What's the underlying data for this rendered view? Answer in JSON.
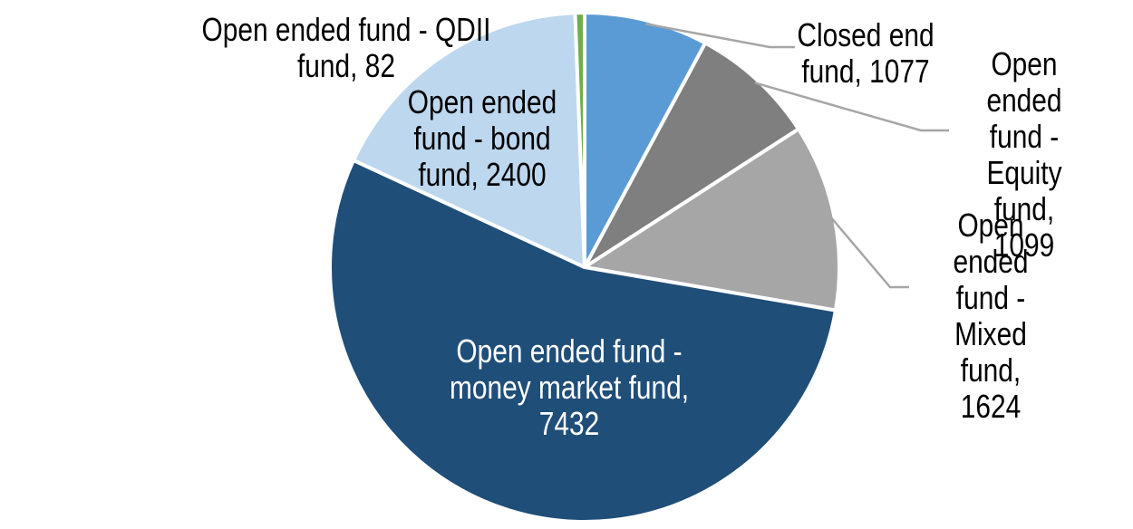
{
  "chart_data": {
    "type": "pie",
    "title": "",
    "legend": "none",
    "start_angle_deg": 0,
    "direction": "clockwise",
    "total": 13714,
    "background": "#ffffff",
    "slice_border_color": "#ffffff",
    "leader_line_color": "#a6a6a6",
    "slices": [
      {
        "label": "Closed end fund",
        "value": 1077,
        "percent": 7.9,
        "color": "#5b9bd5",
        "label_color": "#000000",
        "label_placement": "outside",
        "has_leader_line": true,
        "callout": "Closed end\nfund, 1077"
      },
      {
        "label": "Open ended fund - Equity fund",
        "value": 1099,
        "percent": 8.0,
        "color": "#7f7f7f",
        "label_color": "#000000",
        "label_placement": "outside",
        "has_leader_line": true,
        "callout": "Open ended\nfund - Equity\nfund, 1099"
      },
      {
        "label": "Open ended fund - Mixed fund",
        "value": 1624,
        "percent": 11.8,
        "color": "#a6a6a6",
        "label_color": "#000000",
        "label_placement": "outside",
        "has_leader_line": true,
        "callout": "Open ended\nfund - Mixed\nfund, 1624"
      },
      {
        "label": "Open ended fund - money market fund",
        "value": 7432,
        "percent": 54.2,
        "color": "#1f4e79",
        "label_color": "#ffffff",
        "label_placement": "inside",
        "has_leader_line": false,
        "callout": "Open ended fund -\nmoney market fund,\n7432"
      },
      {
        "label": "Open ended fund - bond fund",
        "value": 2400,
        "percent": 17.5,
        "color": "#bdd7ee",
        "label_color": "#000000",
        "label_placement": "inside",
        "has_leader_line": false,
        "callout": "Open ended\nfund - bond\nfund, 2400"
      },
      {
        "label": "Open ended fund - QDII fund",
        "value": 82,
        "percent": 0.6,
        "color": "#70ad47",
        "label_color": "#000000",
        "label_placement": "outside",
        "has_leader_line": false,
        "callout": "Open ended fund - QDII\nfund, 82"
      }
    ]
  }
}
